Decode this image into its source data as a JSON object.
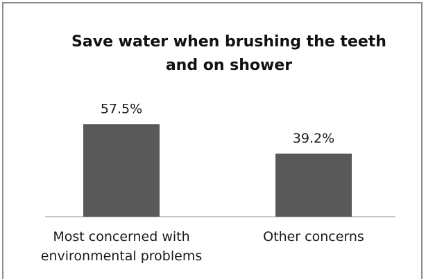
{
  "chart_data": {
    "type": "bar",
    "title_lines": [
      "Save water when brushing the teeth",
      "and on shower"
    ],
    "categories": [
      [
        "Most concerned with",
        "environmental problems"
      ],
      [
        "Other concerns"
      ]
    ],
    "values": [
      57.5,
      39.2
    ],
    "value_labels": [
      "57.5%",
      "39.2%"
    ],
    "ylim": [
      0,
      70
    ],
    "grid": false,
    "legend": "none",
    "bar_color": "#595959",
    "xlabel": "",
    "ylabel": ""
  }
}
